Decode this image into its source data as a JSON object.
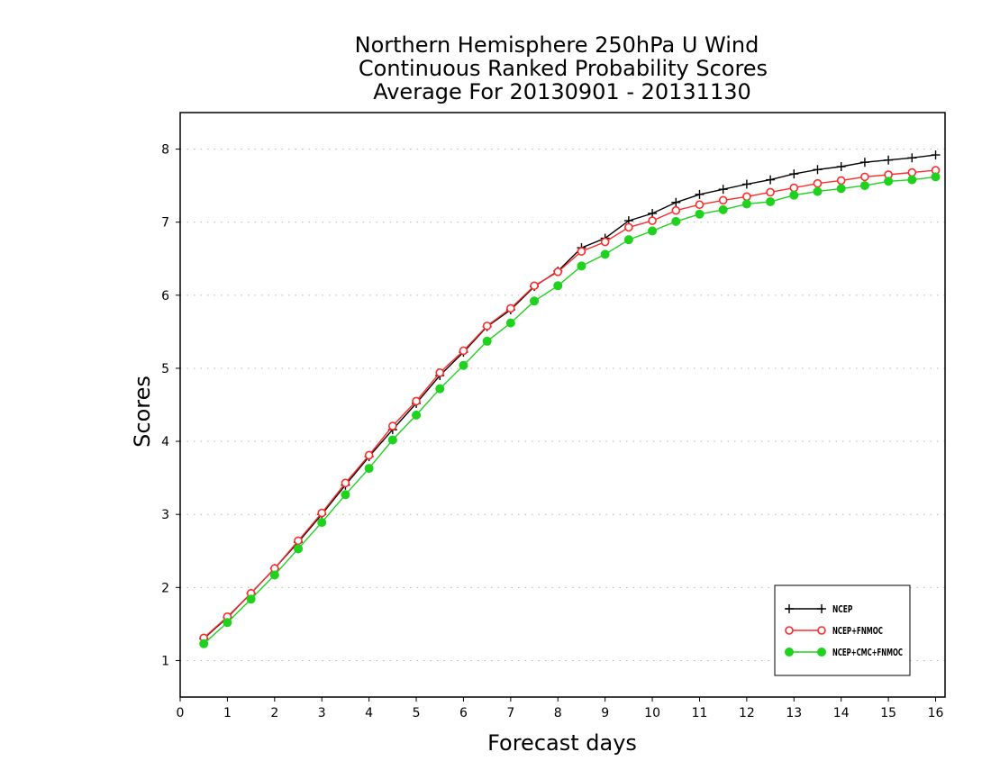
{
  "chart_data": {
    "type": "line",
    "title": [
      "Northern Hemisphere 250hPa U Wind",
      "Continuous Ranked Probability Scores",
      "Average For 20130901 - 20131130"
    ],
    "xlabel": "Forecast days",
    "ylabel": "Scores",
    "xlim": [
      0,
      16.2
    ],
    "ylim": [
      0.5,
      8.5
    ],
    "xticks": [
      0,
      1,
      2,
      3,
      4,
      5,
      6,
      7,
      8,
      9,
      10,
      11,
      12,
      13,
      14,
      15,
      16
    ],
    "yticks": [
      1,
      2,
      3,
      4,
      5,
      6,
      7,
      8
    ],
    "grid": "horizontal dotted",
    "legend_position": "bottom-right",
    "x": [
      0.5,
      1,
      1.5,
      2,
      2.5,
      3,
      3.5,
      4,
      4.5,
      5,
      5.5,
      6,
      6.5,
      7,
      7.5,
      8,
      8.5,
      9,
      9.5,
      10,
      10.5,
      11,
      11.5,
      12,
      12.5,
      13,
      13.5,
      14,
      14.5,
      15,
      15.5,
      16
    ],
    "series": [
      {
        "name": "NCEP",
        "color": "#000000",
        "marker": "plus",
        "values": [
          1.3,
          1.59,
          1.92,
          2.26,
          2.62,
          3.0,
          3.4,
          3.79,
          4.16,
          4.52,
          4.9,
          5.22,
          5.57,
          5.8,
          6.12,
          6.33,
          6.65,
          6.78,
          7.02,
          7.12,
          7.27,
          7.38,
          7.45,
          7.52,
          7.58,
          7.66,
          7.72,
          7.76,
          7.82,
          7.85,
          7.88,
          7.92
        ]
      },
      {
        "name": "NCEP+FNMOC",
        "color": "#ff2a2a",
        "marker": "open-circle",
        "values": [
          1.31,
          1.6,
          1.92,
          2.26,
          2.64,
          3.02,
          3.43,
          3.81,
          4.21,
          4.55,
          4.94,
          5.24,
          5.58,
          5.82,
          6.13,
          6.32,
          6.6,
          6.73,
          6.93,
          7.02,
          7.16,
          7.24,
          7.3,
          7.35,
          7.41,
          7.47,
          7.53,
          7.57,
          7.62,
          7.65,
          7.68,
          7.71
        ]
      },
      {
        "name": "NCEP+CMC+FNMOC",
        "color": "#1ed21e",
        "marker": "filled-circle",
        "values": [
          1.23,
          1.52,
          1.84,
          2.17,
          2.53,
          2.89,
          3.27,
          3.63,
          4.02,
          4.36,
          4.72,
          5.04,
          5.37,
          5.62,
          5.92,
          6.13,
          6.4,
          6.56,
          6.76,
          6.88,
          7.01,
          7.11,
          7.17,
          7.25,
          7.28,
          7.37,
          7.42,
          7.46,
          7.5,
          7.56,
          7.58,
          7.62
        ]
      }
    ]
  }
}
